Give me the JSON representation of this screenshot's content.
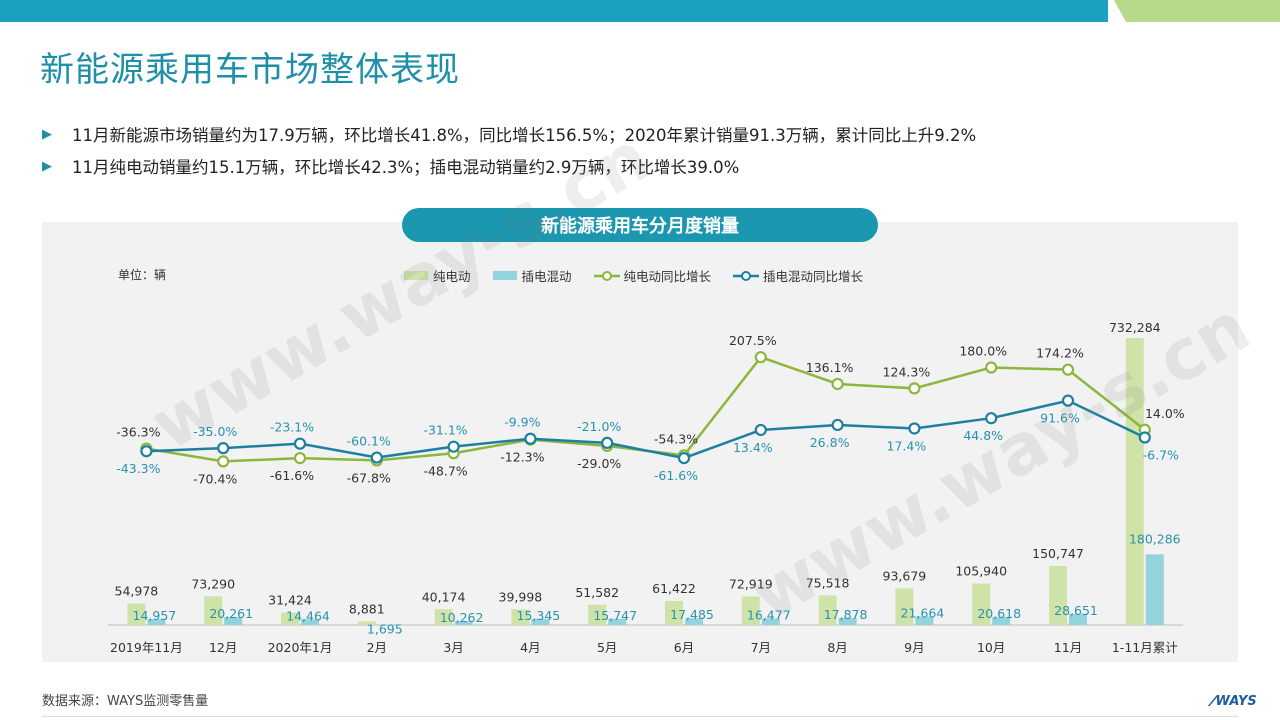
{
  "slide": {
    "title": "新能源乘用车市场整体表现",
    "bullets": [
      "11月新能源市场销量约为17.9万辆，环比增长41.8%，同比增长156.5%；2020年累计销量91.3万辆，累计同比上升9.2%",
      "11月纯电动销量约15.1万辆，环比增长42.3%；插电混动销量约2.9万辆，环比增长39.0%"
    ],
    "source": "数据来源：WAYS监测零售量",
    "logo_text": "WAYS",
    "watermark_text": "www.way-s.cn"
  },
  "colors": {
    "bar_ev": "#cfe3a9",
    "bar_phev": "#93d3dc",
    "line_ev": "#8cb63c",
    "line_phev": "#1e7fa0",
    "accent": "#1b97b0",
    "label_ev": "#333333",
    "label_phev": "#2a91b0"
  },
  "chart_data": {
    "type": "bar+line",
    "title": "新能源乘用车分月度销量",
    "unit_label": "单位：辆",
    "categories": [
      "2019年11月",
      "12月",
      "2020年1月",
      "2月",
      "3月",
      "4月",
      "5月",
      "6月",
      "7月",
      "8月",
      "9月",
      "10月",
      "11月",
      "1-11月累计"
    ],
    "series": [
      {
        "name": "纯电动",
        "type": "bar",
        "values": [
          54978,
          73290,
          31424,
          8881,
          40174,
          39998,
          51582,
          61422,
          72919,
          75518,
          93679,
          105940,
          150747,
          732284
        ],
        "labels": [
          "54,978",
          "73,290",
          "31,424",
          "8,881",
          "40,174",
          "39,998",
          "51,582",
          "61,422",
          "72,919",
          "75,518",
          "93,679",
          "105,940",
          "150,747",
          "732,284"
        ]
      },
      {
        "name": "插电混动",
        "type": "bar",
        "values": [
          14957,
          20261,
          14464,
          1695,
          10262,
          15345,
          15747,
          17485,
          16477,
          17878,
          21664,
          20618,
          28651,
          180286
        ],
        "labels": [
          "14,957",
          "20,261",
          "14,464",
          "1,695",
          "10,262",
          "15,345",
          "15,747",
          "17,485",
          "16,477",
          "17,878",
          "21,664",
          "20,618",
          "28,651",
          "180,286"
        ]
      },
      {
        "name": "纯电动同比增长",
        "type": "line",
        "values": [
          -36.3,
          -70.4,
          -61.6,
          -67.8,
          -48.7,
          -12.3,
          -29.0,
          -54.3,
          207.5,
          136.1,
          124.3,
          180.0,
          174.2,
          14.0
        ],
        "labels": [
          "-36.3%",
          "-70.4%",
          "-61.6%",
          "-67.8%",
          "-48.7%",
          "-12.3%",
          "-29.0%",
          "-54.3%",
          "207.5%",
          "136.1%",
          "124.3%",
          "180.0%",
          "174.2%",
          "14.0%"
        ]
      },
      {
        "name": "插电混动同比增长",
        "type": "line",
        "values": [
          -43.3,
          -35.0,
          -23.1,
          -60.1,
          -31.1,
          -9.9,
          -21.0,
          -61.6,
          13.4,
          26.8,
          17.4,
          44.8,
          91.6,
          -6.7
        ],
        "labels": [
          "-43.3%",
          "-35.0%",
          "-23.1%",
          "-60.1%",
          "-31.1%",
          "-9.9%",
          "-21.0%",
          "-61.6%",
          "13.4%",
          "26.8%",
          "17.4%",
          "44.8%",
          "91.6%",
          "-6.7%"
        ]
      }
    ],
    "bar_axis_max": 745000,
    "line_axis_range": [
      -80,
      240
    ]
  }
}
